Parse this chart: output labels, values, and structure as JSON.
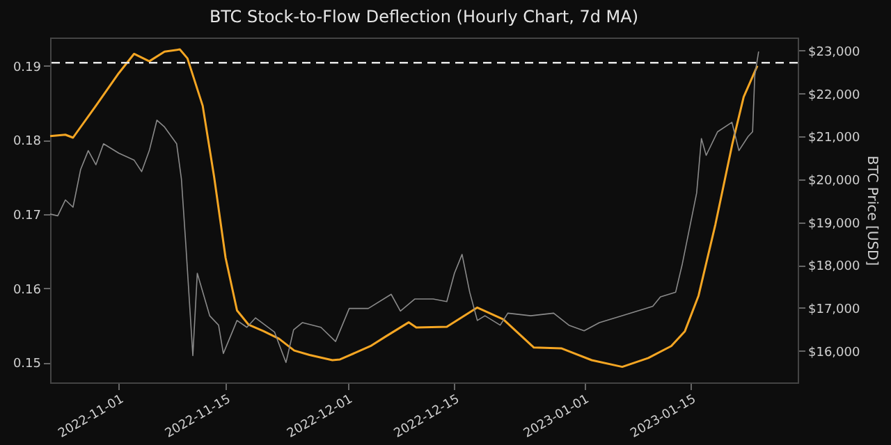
{
  "chart_data": {
    "type": "line",
    "title": "BTC Stock-to-Flow Deflection (Hourly Chart, 7d MA)",
    "y2label": "BTC Price [USD]",
    "xlim": [
      "2022-10-23",
      "2023-01-29"
    ],
    "xticks": [
      "2022-11-01",
      "2022-11-15",
      "2022-12-01",
      "2022-12-15",
      "2023-01-01",
      "2023-01-15"
    ],
    "ylim": [
      0.1473,
      0.1938
    ],
    "yticks": [
      0.15,
      0.16,
      0.17,
      0.18,
      0.19
    ],
    "y2lim": [
      15265,
      23306
    ],
    "y2ticks": [
      {
        "value": 16000,
        "label": "$16,000"
      },
      {
        "value": 17000,
        "label": "$17,000"
      },
      {
        "value": 18000,
        "label": "$18,000"
      },
      {
        "value": 19000,
        "label": "$19,000"
      },
      {
        "value": 20000,
        "label": "$20,000"
      },
      {
        "value": 21000,
        "label": "$21,000"
      },
      {
        "value": 22000,
        "label": "$22,000"
      },
      {
        "value": 23000,
        "label": "$23,000"
      }
    ],
    "ref_lines": [
      {
        "axis": "y",
        "value": 0.1904,
        "color": "#e8e8e8",
        "line_style": "dashed"
      }
    ],
    "series": [
      {
        "color": "#8a8a8a",
        "axis": "y2",
        "x": [
          "2022-10-23",
          "2022-10-24",
          "2022-10-25",
          "2022-10-26",
          "2022-10-27",
          "2022-10-28",
          "2022-10-29",
          "2022-10-30",
          "2022-11-01",
          "2022-11-03",
          "2022-11-04",
          "2022-11-05",
          "2022-11-06",
          "2022-11-07",
          "2022-11-08T14:00",
          "2022-11-09T05:00",
          "2022-11-09T19:00",
          "2022-11-10T10:00",
          "2022-11-10T17:00",
          "2022-11-11T07:00",
          "2022-11-12T22:00",
          "2022-11-14T02:00",
          "2022-11-14T17:00",
          "2022-11-16T12:00",
          "2022-11-17T19:00",
          "2022-11-18T22:00",
          "2022-11-21T10:00",
          "2022-11-22",
          "2022-11-22T22:00",
          "2022-11-23T22:00",
          "2022-11-25T02:00",
          "2022-11-27T12:00",
          "2022-11-29T10:00",
          "2022-12-01T05:00",
          "2022-12-03T17:00",
          "2022-12-06T17:00",
          "2022-12-07T22:00",
          "2022-12-09T19:00",
          "2022-12-12T05:00",
          "2022-12-14",
          "2022-12-15",
          "2022-12-16",
          "2022-12-17",
          "2022-12-18",
          "2022-12-19",
          "2022-12-21",
          "2022-12-22",
          "2022-12-25",
          "2022-12-28",
          "2022-12-30",
          "2023-01-01",
          "2023-01-03",
          "2023-01-06",
          "2023-01-08",
          "2023-01-10",
          "2023-01-11",
          "2023-01-13",
          "2023-01-13T21:00",
          "2023-01-14T21:00",
          "2023-01-15T18:00",
          "2023-01-16T09:00",
          "2023-01-17",
          "2023-01-18T12:00",
          "2023-01-20T09:00",
          "2023-01-21T07:00",
          "2023-01-22T12:00",
          "2023-01-23T02:00",
          "2023-01-23T09:00",
          "2023-01-23T21:00"
        ],
        "values": [
          19190,
          19150,
          19520,
          19350,
          20230,
          20670,
          20340,
          20830,
          20610,
          20450,
          20180,
          20670,
          21380,
          21220,
          20830,
          20010,
          18470,
          16710,
          15890,
          17810,
          16820,
          16600,
          15940,
          16710,
          16550,
          16770,
          16440,
          16160,
          15730,
          16490,
          16660,
          16550,
          16220,
          16990,
          16990,
          17320,
          16930,
          17210,
          17210,
          17150,
          17810,
          18250,
          17370,
          16710,
          16820,
          16600,
          16880,
          16820,
          16880,
          16600,
          16470,
          16660,
          16820,
          16930,
          17040,
          17260,
          17370,
          18030,
          18910,
          19680,
          20950,
          20560,
          21110,
          21330,
          20670,
          21000,
          21110,
          22430,
          22980
        ]
      },
      {
        "color": "#f5a623",
        "x": [
          "2022-10-23",
          "2022-10-25",
          "2022-10-26",
          "2022-10-29",
          "2022-11-01",
          "2022-11-03",
          "2022-11-05",
          "2022-11-07",
          "2022-11-09",
          "2022-11-10",
          "2022-11-12",
          "2022-11-13T12:00",
          "2022-11-15",
          "2022-11-16T12:00",
          "2022-11-18",
          "2022-11-20",
          "2022-11-22",
          "2022-11-24",
          "2022-11-26",
          "2022-11-29",
          "2022-11-30",
          "2022-12-04",
          "2022-12-06",
          "2022-12-09",
          "2022-12-10",
          "2022-12-14",
          "2022-12-18",
          "2022-12-21T10:00",
          "2022-12-25T10:00",
          "2022-12-29",
          "2023-01-02",
          "2023-01-06",
          "2023-01-09T10:00",
          "2023-01-12T10:00",
          "2023-01-14T05:00",
          "2023-01-16",
          "2023-01-18T05:00",
          "2023-01-20T10:00",
          "2023-01-21T22:00",
          "2023-01-23T17:00"
        ],
        "values": [
          0.1805,
          0.1807,
          0.1803,
          0.1846,
          0.189,
          0.1916,
          0.1906,
          0.1919,
          0.1922,
          0.191,
          0.1846,
          0.175,
          0.1641,
          0.157,
          0.1551,
          0.1542,
          0.1532,
          0.1516,
          0.151,
          0.1503,
          0.1504,
          0.1522,
          0.1535,
          0.1554,
          0.1547,
          0.1548,
          0.1574,
          0.1558,
          0.152,
          0.1519,
          0.1503,
          0.1494,
          0.1506,
          0.1522,
          0.1542,
          0.159,
          0.1686,
          0.1794,
          0.1858,
          0.19
        ]
      }
    ]
  }
}
